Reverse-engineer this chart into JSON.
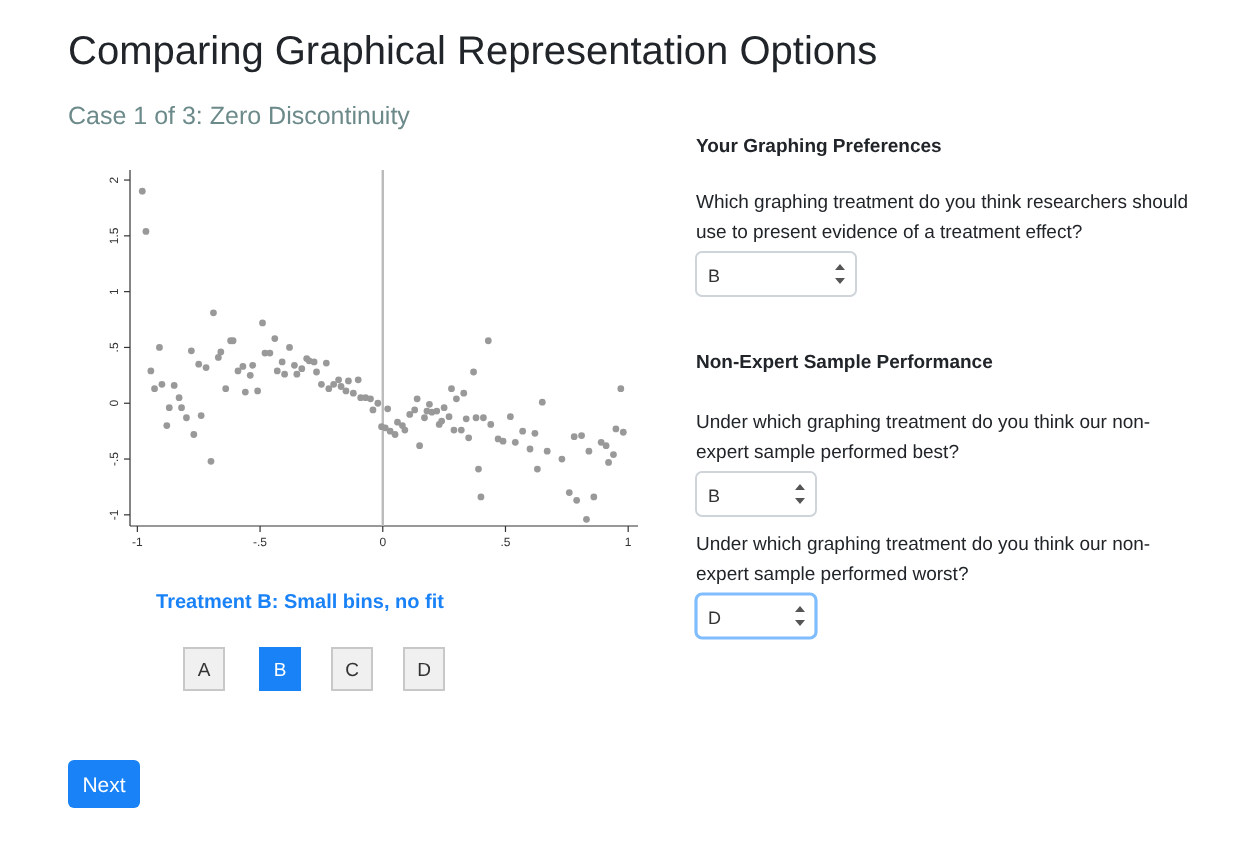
{
  "chart_data": [
    {
      "type": "scatter",
      "title": "Comparing Graphical Representation Options",
      "subtitle": "Case 1 of 3: Zero Discontinuity",
      "annotations": [
        "Treatment B: Small bins, no fit",
        "A",
        "B",
        "C",
        "D",
        "Next"
      ],
      "xlim": [
        -1.03,
        1.04
      ],
      "ylim": [
        -1.1,
        2.09
      ],
      "xticks": [
        {
          "value": -1,
          "label": "-1"
        },
        {
          "value": -0.5,
          "label": "-.5"
        },
        0,
        {
          "value": 0.5,
          "label": ".5"
        },
        1
      ],
      "yticks": [
        {
          "value": -1,
          "label": "-1"
        },
        {
          "value": -0.5,
          "label": "-.5"
        },
        0,
        {
          "value": 0.5,
          "label": ".5"
        },
        1,
        1.5,
        2
      ],
      "ref_lines": [
        {
          "axis": "x",
          "value": 0,
          "color": "#bbbbbb"
        }
      ],
      "marker": "circle",
      "grid": false,
      "series": [
        {
          "color": "#999999",
          "x": [
            -0.98,
            -0.965,
            -0.945,
            -0.93,
            -0.91,
            -0.9,
            -0.88,
            -0.87,
            -0.85,
            -0.83,
            -0.82,
            -0.8,
            -0.78,
            -0.77,
            -0.75,
            -0.74,
            -0.72,
            -0.7,
            -0.69,
            -0.67,
            -0.66,
            -0.64,
            -0.62,
            -0.61,
            -0.59,
            -0.57,
            -0.56,
            -0.54,
            -0.53,
            -0.51,
            -0.49,
            -0.48,
            -0.46,
            -0.44,
            -0.43,
            -0.41,
            -0.4,
            -0.38,
            -0.36,
            -0.35,
            -0.33,
            -0.31,
            -0.3,
            -0.28,
            -0.27,
            -0.25,
            -0.23,
            -0.22,
            -0.2,
            -0.18,
            -0.17,
            -0.15,
            -0.14,
            -0.12,
            -0.1,
            -0.09,
            -0.07,
            -0.05,
            -0.04,
            -0.02,
            -0.005,
            0.01,
            0.02,
            0.03,
            0.05,
            0.06,
            0.08,
            0.09,
            0.11,
            0.13,
            0.14,
            0.15,
            0.17,
            0.18,
            0.19,
            0.2,
            0.22,
            0.23,
            0.24,
            0.25,
            0.27,
            0.28,
            0.29,
            0.3,
            0.32,
            0.33,
            0.34,
            0.35,
            0.37,
            0.38,
            0.39,
            0.4,
            0.41,
            0.43,
            0.44,
            0.47,
            0.49,
            0.52,
            0.54,
            0.57,
            0.6,
            0.62,
            0.63,
            0.65,
            0.67,
            0.73,
            0.76,
            0.78,
            0.79,
            0.81,
            0.83,
            0.84,
            0.86,
            0.89,
            0.91,
            0.92,
            0.94,
            0.95,
            0.97,
            0.98
          ],
          "values": [
            1.9,
            1.54,
            0.29,
            0.13,
            0.5,
            0.17,
            -0.2,
            -0.04,
            0.16,
            0.05,
            -0.04,
            -0.13,
            0.47,
            -0.28,
            0.35,
            -0.11,
            0.32,
            -0.52,
            0.81,
            0.41,
            0.46,
            0.13,
            0.56,
            0.56,
            0.29,
            0.33,
            0.1,
            0.25,
            0.34,
            0.11,
            0.72,
            0.45,
            0.45,
            0.58,
            0.29,
            0.37,
            0.26,
            0.5,
            0.34,
            0.26,
            0.31,
            0.4,
            0.38,
            0.37,
            0.28,
            0.17,
            0.36,
            0.13,
            0.17,
            0.21,
            0.15,
            0.11,
            0.2,
            0.09,
            0.21,
            0.05,
            0.05,
            0.04,
            -0.06,
            0,
            -0.21,
            -0.22,
            -0.05,
            -0.25,
            -0.28,
            -0.17,
            -0.2,
            -0.24,
            -0.1,
            -0.06,
            0.04,
            -0.38,
            -0.13,
            -0.07,
            -0.01,
            -0.08,
            -0.07,
            -0.19,
            -0.16,
            -0.04,
            -0.12,
            0.13,
            -0.24,
            0.04,
            -0.24,
            0.09,
            -0.14,
            -0.31,
            0.28,
            -0.13,
            -0.59,
            -0.84,
            -0.13,
            0.56,
            -0.19,
            -0.32,
            -0.34,
            -0.12,
            -0.35,
            -0.25,
            -0.41,
            -0.27,
            -0.59,
            0.01,
            -0.43,
            -0.5,
            -0.8,
            -0.3,
            -0.87,
            -0.29,
            -1.04,
            -0.43,
            -0.84,
            -0.35,
            -0.38,
            -0.53,
            -0.46,
            -0.23,
            0.13,
            -0.26
          ]
        }
      ]
    },
    {
      "type": "other",
      "title": "Your Graphing Preferences",
      "annotations": [
        "Which graphing treatment do you think researchers should use to present evidence of a treatment effect?",
        "B",
        "Non-Expert Sample Performance",
        "Under which graphing treatment do you think our non-expert sample performed best?",
        "B",
        "Under which graphing treatment do you think our non-expert sample performed worst?",
        "D"
      ]
    }
  ]
}
